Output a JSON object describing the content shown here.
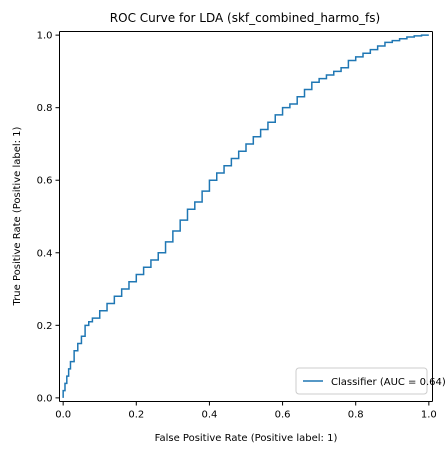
{
  "chart_data": {
    "type": "line",
    "title": "ROC Curve for LDA (skf_combined_harmo_fs)",
    "xlabel": "False Positive Rate (Positive label: 1)",
    "ylabel": "True Positive Rate (Positive label: 1)",
    "xlim": [
      -0.01,
      1.01
    ],
    "ylim": [
      -0.01,
      1.01
    ],
    "xticks": [
      0.0,
      0.2,
      0.4,
      0.6,
      0.8,
      1.0
    ],
    "yticks": [
      0.0,
      0.2,
      0.4,
      0.6,
      0.8,
      1.0
    ],
    "xtick_labels": [
      "0.0",
      "0.2",
      "0.4",
      "0.6",
      "0.8",
      "1.0"
    ],
    "ytick_labels": [
      "0.0",
      "0.2",
      "0.4",
      "0.6",
      "0.8",
      "1.0"
    ],
    "grid": false,
    "legend_position": "lower-right",
    "series": [
      {
        "name": "Classifier (AUC = 0.64)",
        "color": "#1f77b4",
        "x": [
          0.0,
          0.0,
          0.005,
          0.01,
          0.015,
          0.02,
          0.03,
          0.04,
          0.05,
          0.06,
          0.07,
          0.08,
          0.1,
          0.12,
          0.14,
          0.16,
          0.18,
          0.2,
          0.22,
          0.24,
          0.26,
          0.28,
          0.3,
          0.32,
          0.34,
          0.36,
          0.38,
          0.4,
          0.42,
          0.44,
          0.46,
          0.48,
          0.5,
          0.52,
          0.54,
          0.56,
          0.58,
          0.6,
          0.62,
          0.64,
          0.66,
          0.68,
          0.7,
          0.72,
          0.74,
          0.76,
          0.78,
          0.8,
          0.82,
          0.84,
          0.86,
          0.88,
          0.9,
          0.92,
          0.94,
          0.96,
          0.98,
          1.0
        ],
        "y": [
          0.0,
          0.02,
          0.04,
          0.06,
          0.08,
          0.1,
          0.13,
          0.15,
          0.17,
          0.2,
          0.21,
          0.22,
          0.24,
          0.26,
          0.28,
          0.3,
          0.32,
          0.34,
          0.36,
          0.38,
          0.4,
          0.43,
          0.46,
          0.49,
          0.52,
          0.54,
          0.57,
          0.6,
          0.62,
          0.64,
          0.66,
          0.68,
          0.7,
          0.72,
          0.74,
          0.76,
          0.78,
          0.8,
          0.81,
          0.83,
          0.85,
          0.87,
          0.88,
          0.89,
          0.9,
          0.91,
          0.93,
          0.94,
          0.95,
          0.96,
          0.97,
          0.98,
          0.985,
          0.99,
          0.995,
          0.998,
          1.0,
          1.0
        ]
      }
    ]
  }
}
